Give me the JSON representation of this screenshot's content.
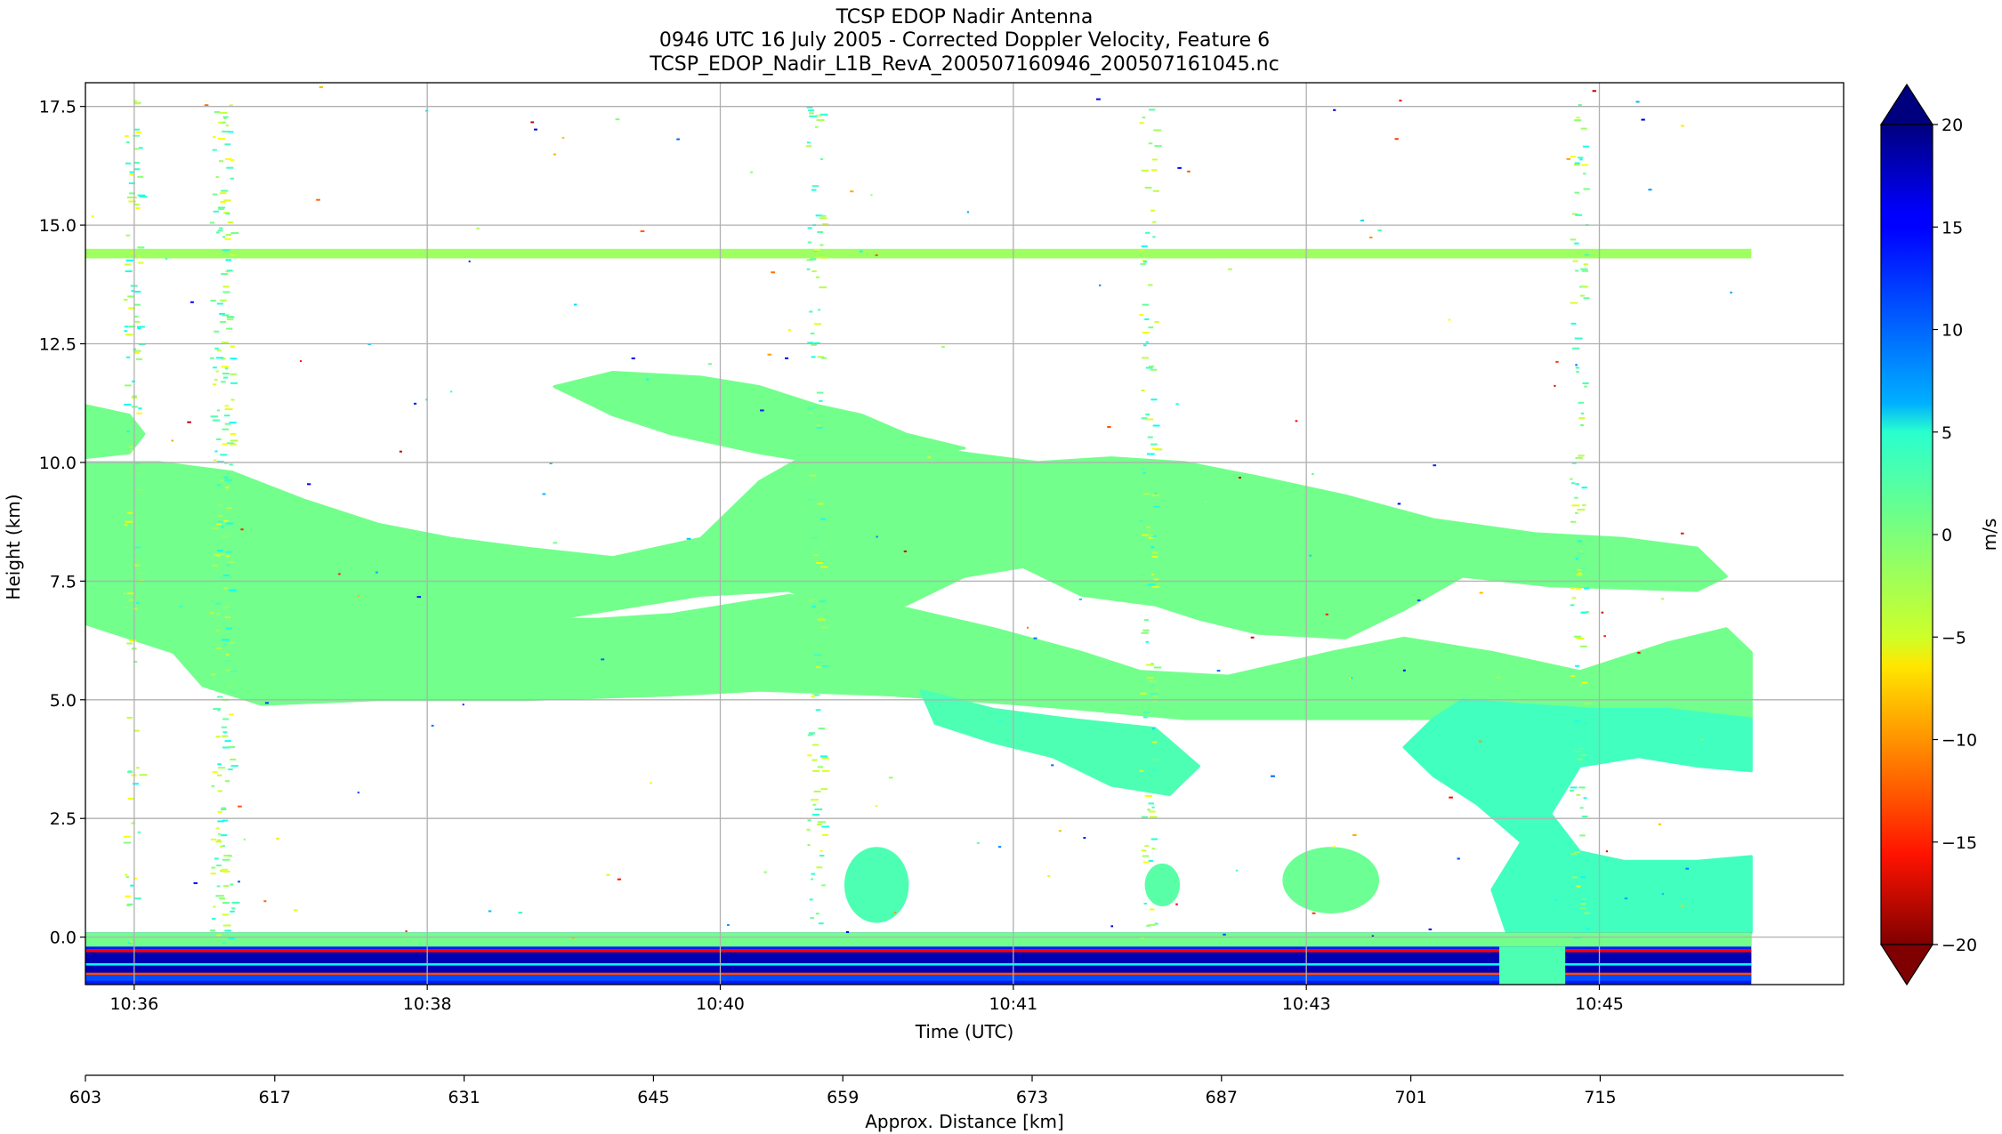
{
  "chart_data": {
    "type": "heatmap",
    "title_lines": [
      "TCSP EDOP Nadir Antenna",
      "0946 UTC 16 July 2005 - Corrected Doppler Velocity, Feature 6",
      "TCSP_EDOP_Nadir_L1B_RevA_200507160946_200507161045.nc"
    ],
    "xlabel": "Time (UTC)",
    "ylabel": "Height (km)",
    "colorbar_label": "m/s",
    "colormap": "jet_r",
    "clim": [
      -20,
      20
    ],
    "colorbar_extend": "both",
    "x_time_range": [
      "10:35:40",
      "10:46:30"
    ],
    "x_ticks": [
      {
        "t": 0.333,
        "label": "10:36"
      },
      {
        "t": 2.333,
        "label": "10:38"
      },
      {
        "t": 4.333,
        "label": "10:40"
      },
      {
        "t": 6.333,
        "label": "10:41"
      },
      {
        "t": 8.333,
        "label": "10:43"
      },
      {
        "t": 10.333,
        "label": "10:45"
      }
    ],
    "x_minutes_span": 12.0,
    "ylim": [
      -1.0,
      18.0
    ],
    "y_ticks": [
      {
        "v": 0.0,
        "label": "0.0"
      },
      {
        "v": 2.5,
        "label": "2.5"
      },
      {
        "v": 5.0,
        "label": "5.0"
      },
      {
        "v": 7.5,
        "label": "7.5"
      },
      {
        "v": 10.0,
        "label": "10.0"
      },
      {
        "v": 12.5,
        "label": "12.5"
      },
      {
        "v": 15.0,
        "label": "15.0"
      },
      {
        "v": 17.5,
        "label": "17.5"
      }
    ],
    "colorbar_ticks": [
      {
        "v": 20,
        "label": "20"
      },
      {
        "v": 15,
        "label": "15"
      },
      {
        "v": 10,
        "label": "10"
      },
      {
        "v": 5,
        "label": "5"
      },
      {
        "v": 0,
        "label": "0"
      },
      {
        "v": -5,
        "label": "−5"
      },
      {
        "v": -10,
        "label": "−10"
      },
      {
        "v": -15,
        "label": "−15"
      },
      {
        "v": -20,
        "label": "−20"
      }
    ],
    "secondary_axis": {
      "label": "Approx. Distance [km]",
      "range": [
        603,
        733
      ],
      "ticks": [
        {
          "v": 603,
          "label": "603"
        },
        {
          "v": 617,
          "label": "617"
        },
        {
          "v": 631,
          "label": "631"
        },
        {
          "v": 645,
          "label": "645"
        },
        {
          "v": 659,
          "label": "659"
        },
        {
          "v": 673,
          "label": "673"
        },
        {
          "v": 687,
          "label": "687"
        },
        {
          "v": 701,
          "label": "701"
        },
        {
          "v": 715,
          "label": "715"
        }
      ]
    },
    "data_extent_minutes": [
      0.0,
      11.37
    ],
    "features": [
      {
        "name": "upper-cloud-layer",
        "kind": "polygon",
        "velocity": 0.5,
        "points": [
          [
            0,
            10.0
          ],
          [
            0.5,
            10.0
          ],
          [
            1.0,
            9.8
          ],
          [
            1.5,
            9.2
          ],
          [
            2.0,
            8.7
          ],
          [
            2.5,
            8.4
          ],
          [
            3.0,
            8.2
          ],
          [
            3.6,
            8.0
          ],
          [
            4.2,
            8.4
          ],
          [
            4.6,
            9.6
          ],
          [
            5.0,
            10.3
          ],
          [
            5.5,
            10.5
          ],
          [
            6.0,
            10.2
          ],
          [
            6.5,
            10.0
          ],
          [
            7.0,
            10.1
          ],
          [
            7.5,
            10.0
          ],
          [
            8.0,
            9.7
          ],
          [
            8.6,
            9.3
          ],
          [
            9.2,
            8.8
          ],
          [
            9.9,
            8.5
          ],
          [
            10.5,
            8.4
          ],
          [
            11.0,
            8.2
          ],
          [
            11.2,
            7.6
          ],
          [
            11.0,
            7.3
          ],
          [
            10.0,
            7.4
          ],
          [
            9.4,
            7.6
          ],
          [
            9.0,
            6.9
          ],
          [
            8.6,
            6.3
          ],
          [
            8.0,
            6.4
          ],
          [
            7.6,
            6.7
          ],
          [
            7.3,
            7.0
          ],
          [
            6.8,
            7.2
          ],
          [
            6.4,
            7.8
          ],
          [
            6.0,
            7.6
          ],
          [
            5.6,
            7.0
          ],
          [
            5.2,
            6.8
          ],
          [
            4.8,
            7.3
          ],
          [
            4.2,
            7.2
          ],
          [
            3.2,
            6.7
          ],
          [
            2.5,
            6.6
          ],
          [
            1.8,
            6.7
          ],
          [
            1.0,
            6.6
          ],
          [
            0.5,
            6.6
          ],
          [
            0,
            6.8
          ]
        ]
      },
      {
        "name": "mid-cloud-layer",
        "kind": "polygon",
        "velocity": 0.5,
        "points": [
          [
            0,
            6.8
          ],
          [
            0.7,
            6.7
          ],
          [
            1.5,
            6.7
          ],
          [
            2.5,
            6.7
          ],
          [
            3.5,
            6.7
          ],
          [
            4.0,
            6.8
          ],
          [
            4.8,
            7.2
          ],
          [
            5.5,
            7.0
          ],
          [
            6.2,
            6.5
          ],
          [
            6.8,
            6.0
          ],
          [
            7.2,
            5.6
          ],
          [
            7.8,
            5.5
          ],
          [
            8.5,
            6.0
          ],
          [
            9.0,
            6.3
          ],
          [
            9.6,
            6.0
          ],
          [
            10.2,
            5.6
          ],
          [
            10.8,
            6.2
          ],
          [
            11.2,
            6.5
          ],
          [
            11.37,
            6.0
          ],
          [
            11.37,
            4.6
          ],
          [
            10.5,
            4.6
          ],
          [
            9.5,
            4.6
          ],
          [
            8.5,
            4.6
          ],
          [
            7.5,
            4.6
          ],
          [
            6.8,
            4.8
          ],
          [
            6.4,
            4.9
          ],
          [
            5.5,
            5.1
          ],
          [
            4.6,
            5.2
          ],
          [
            4.0,
            5.1
          ],
          [
            3.0,
            5.0
          ],
          [
            2.0,
            5.0
          ],
          [
            1.2,
            4.9
          ],
          [
            0.8,
            5.3
          ],
          [
            0.6,
            6.0
          ],
          [
            0.2,
            6.4
          ],
          [
            0,
            6.6
          ]
        ]
      },
      {
        "name": "anvil-upper-region",
        "kind": "polygon",
        "velocity": 0.5,
        "points": [
          [
            3.2,
            11.6
          ],
          [
            3.6,
            11.9
          ],
          [
            4.2,
            11.8
          ],
          [
            4.6,
            11.6
          ],
          [
            5.0,
            11.2
          ],
          [
            5.3,
            11.0
          ],
          [
            5.6,
            10.6
          ],
          [
            6.0,
            10.3
          ],
          [
            5.5,
            10.1
          ],
          [
            5.0,
            10.0
          ],
          [
            4.6,
            10.2
          ],
          [
            4.0,
            10.6
          ],
          [
            3.6,
            11.0
          ]
        ]
      },
      {
        "name": "leading-cloud-patch",
        "kind": "polygon",
        "velocity": 0.5,
        "points": [
          [
            0,
            11.2
          ],
          [
            0.3,
            11.0
          ],
          [
            0.4,
            10.6
          ],
          [
            0.3,
            10.2
          ],
          [
            0,
            10.1
          ]
        ]
      },
      {
        "name": "descending-band",
        "kind": "polygon",
        "velocity": 2.0,
        "points": [
          [
            5.7,
            5.2
          ],
          [
            6.2,
            4.8
          ],
          [
            6.7,
            4.6
          ],
          [
            7.3,
            4.4
          ],
          [
            7.6,
            3.6
          ],
          [
            7.4,
            3.0
          ],
          [
            7.0,
            3.2
          ],
          [
            6.6,
            3.8
          ],
          [
            6.2,
            4.1
          ],
          [
            5.8,
            4.5
          ]
        ]
      },
      {
        "name": "precip-shaft",
        "kind": "polygon",
        "velocity": 2.5,
        "points": [
          [
            9.4,
            5.0
          ],
          [
            9.8,
            4.9
          ],
          [
            10.3,
            4.8
          ],
          [
            10.8,
            4.8
          ],
          [
            11.37,
            4.6
          ],
          [
            11.37,
            3.5
          ],
          [
            11.0,
            3.6
          ],
          [
            10.6,
            3.8
          ],
          [
            10.2,
            3.6
          ],
          [
            10.0,
            2.6
          ],
          [
            10.2,
            1.8
          ],
          [
            10.5,
            1.6
          ],
          [
            11.0,
            1.6
          ],
          [
            11.37,
            1.7
          ],
          [
            11.37,
            0.1
          ],
          [
            10.6,
            0.1
          ],
          [
            10.2,
            0.1
          ],
          [
            9.7,
            0.1
          ],
          [
            9.6,
            1.0
          ],
          [
            9.8,
            2.0
          ],
          [
            9.5,
            2.8
          ],
          [
            9.2,
            3.4
          ],
          [
            9.0,
            4.0
          ],
          [
            9.2,
            4.6
          ]
        ]
      },
      {
        "name": "low-cloud-blob-1",
        "kind": "ellipse",
        "velocity": 2.0,
        "cx": 5.4,
        "cy": 1.1,
        "rx": 0.22,
        "ry": 0.8
      },
      {
        "name": "low-cloud-blob-2",
        "kind": "ellipse",
        "velocity": 0.8,
        "cx": 8.5,
        "cy": 1.2,
        "rx": 0.33,
        "ry": 0.7
      },
      {
        "name": "low-cloud-blob-3",
        "kind": "ellipse",
        "velocity": 1.5,
        "cx": 7.35,
        "cy": 1.1,
        "rx": 0.12,
        "ry": 0.45
      },
      {
        "name": "tropopause-noise-line",
        "kind": "band",
        "velocity": -1.2,
        "y0": 14.3,
        "y1": 14.5
      },
      {
        "name": "surface-return",
        "kind": "surface",
        "y0": -1.0,
        "y1": 0.1
      }
    ]
  }
}
